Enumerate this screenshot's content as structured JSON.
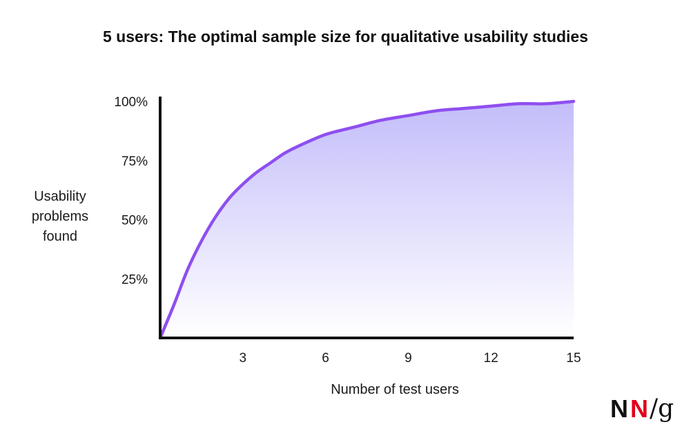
{
  "chart_data": {
    "type": "area",
    "title": "5 users: The optimal sample size for qualitative usability studies",
    "xlabel": "Number of test users",
    "ylabel": [
      "Usability",
      "problems",
      "found"
    ],
    "xlim": [
      0,
      15
    ],
    "ylim": [
      0,
      100
    ],
    "x_ticks": [
      3,
      6,
      9,
      12,
      15
    ],
    "x_tick_labels": [
      "3",
      "6",
      "9",
      "12",
      "15"
    ],
    "y_ticks": [
      25,
      50,
      75,
      100
    ],
    "y_tick_labels": [
      "25%",
      "50%",
      "75%",
      "100%"
    ],
    "grid": false,
    "legend": "none",
    "series": [
      {
        "x": [
          0,
          0.5,
          1,
          1.5,
          2,
          2.5,
          3,
          3.5,
          4,
          4.5,
          5,
          6,
          7,
          8,
          9,
          10,
          11,
          12,
          13,
          14,
          15
        ],
        "values": [
          0,
          14,
          29,
          41,
          51,
          59,
          65,
          70,
          74,
          78,
          81,
          86,
          89,
          92,
          94,
          96,
          97,
          98,
          99,
          99,
          100
        ]
      }
    ],
    "colors": {
      "line": "#8e4ff0",
      "fill_top": "#c3bdfa",
      "fill_bottom": "#ffffff",
      "axis": "#111111"
    }
  },
  "logo": {
    "n1": "N",
    "n2": "N",
    "slash": "/",
    "g": "g"
  }
}
